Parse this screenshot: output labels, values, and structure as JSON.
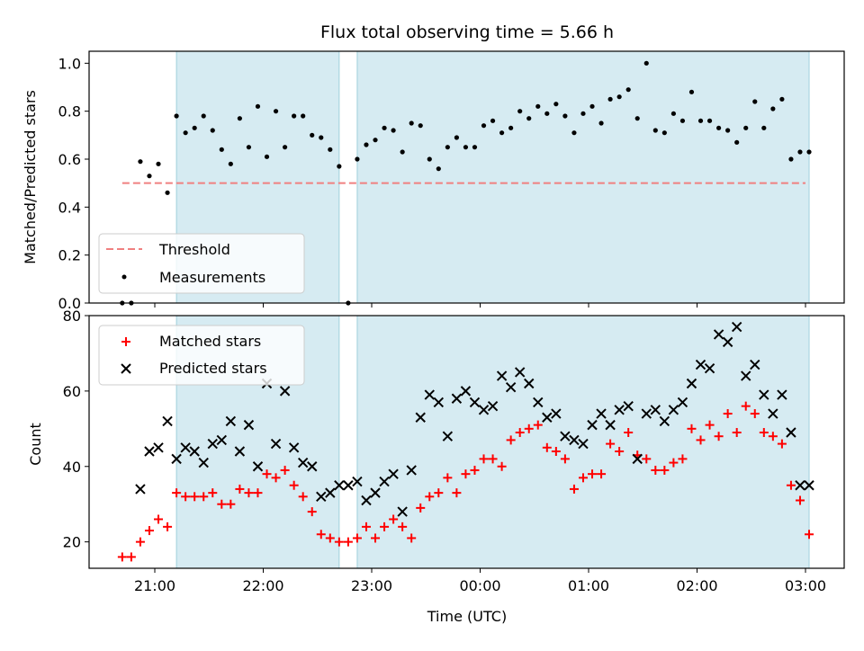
{
  "title": "Flux total observing time = 5.66 h",
  "chart_data": [
    {
      "type": "scatter",
      "panel": "top",
      "ylabel": "Matched/Predicted stars",
      "ylim": [
        0,
        1.05
      ],
      "yticks": [
        0.0,
        0.2,
        0.4,
        0.6,
        0.8,
        1.0
      ],
      "ytick_labels": [
        "0.0",
        "0.2",
        "0.4",
        "0.6",
        "0.8",
        "1.0"
      ],
      "legend_position": "lower-left",
      "grid": false,
      "threshold": {
        "name": "Threshold",
        "value": 0.5,
        "x_start": "20:42",
        "x_end": "03:00",
        "color": "#f08080"
      },
      "series": [
        {
          "name": "Measurements",
          "marker": "dot",
          "color": "#000000",
          "x": [
            "20:42",
            "20:47",
            "20:52",
            "20:57",
            "21:02",
            "21:07",
            "21:12",
            "21:17",
            "21:22",
            "21:27",
            "21:32",
            "21:37",
            "21:42",
            "21:47",
            "21:52",
            "21:57",
            "22:02",
            "22:07",
            "22:12",
            "22:17",
            "22:22",
            "22:27",
            "22:32",
            "22:37",
            "22:42",
            "22:47",
            "22:52",
            "22:57",
            "23:02",
            "23:07",
            "23:12",
            "23:17",
            "23:22",
            "23:27",
            "23:32",
            "23:37",
            "23:42",
            "23:47",
            "23:52",
            "23:57",
            "00:02",
            "00:07",
            "00:12",
            "00:17",
            "00:22",
            "00:27",
            "00:32",
            "00:37",
            "00:42",
            "00:47",
            "00:52",
            "00:57",
            "01:02",
            "01:07",
            "01:12",
            "01:17",
            "01:22",
            "01:27",
            "01:32",
            "01:37",
            "01:42",
            "01:47",
            "01:52",
            "01:57",
            "02:02",
            "02:07",
            "02:12",
            "02:17",
            "02:22",
            "02:27",
            "02:32",
            "02:37",
            "02:42",
            "02:47",
            "02:52",
            "02:57",
            "03:02"
          ],
          "y": [
            0.0,
            0.0,
            0.59,
            0.53,
            0.58,
            0.46,
            0.78,
            0.71,
            0.73,
            0.78,
            0.72,
            0.64,
            0.58,
            0.77,
            0.65,
            0.82,
            0.61,
            0.8,
            0.65,
            0.78,
            0.78,
            0.7,
            0.69,
            0.64,
            0.57,
            0.0,
            0.6,
            0.66,
            0.68,
            0.73,
            0.72,
            0.63,
            0.75,
            0.74,
            0.6,
            0.56,
            0.65,
            0.69,
            0.65,
            0.65,
            0.74,
            0.76,
            0.71,
            0.73,
            0.8,
            0.77,
            0.82,
            0.79,
            0.83,
            0.78,
            0.71,
            0.79,
            0.82,
            0.75,
            0.85,
            0.86,
            0.89,
            0.77,
            1.0,
            0.72,
            0.71,
            0.79,
            0.76,
            0.88,
            0.76,
            0.76,
            0.73,
            0.72,
            0.67,
            0.73,
            0.84,
            0.73,
            0.81,
            0.85,
            0.6,
            0.63,
            0.63
          ]
        }
      ]
    },
    {
      "type": "scatter",
      "panel": "bottom",
      "xlabel": "Time (UTC)",
      "ylabel": "Count",
      "ylim": [
        13,
        80
      ],
      "yticks": [
        20,
        40,
        60,
        80
      ],
      "ytick_labels": [
        "20",
        "40",
        "60",
        "80"
      ],
      "xticks": [
        "21:00",
        "22:00",
        "23:00",
        "00:00",
        "01:00",
        "02:00",
        "03:00"
      ],
      "legend_position": "upper-left",
      "grid": false,
      "series": [
        {
          "name": "Matched stars",
          "marker": "plus",
          "color": "#ff0000",
          "x": [
            "20:42",
            "20:47",
            "20:52",
            "20:57",
            "21:02",
            "21:07",
            "21:12",
            "21:17",
            "21:22",
            "21:27",
            "21:32",
            "21:37",
            "21:42",
            "21:47",
            "21:52",
            "21:57",
            "22:02",
            "22:07",
            "22:12",
            "22:17",
            "22:22",
            "22:27",
            "22:32",
            "22:37",
            "22:42",
            "22:47",
            "22:52",
            "22:57",
            "23:02",
            "23:07",
            "23:12",
            "23:17",
            "23:22",
            "23:27",
            "23:32",
            "23:37",
            "23:42",
            "23:47",
            "23:52",
            "23:57",
            "00:02",
            "00:07",
            "00:12",
            "00:17",
            "00:22",
            "00:27",
            "00:32",
            "00:37",
            "00:42",
            "00:47",
            "00:52",
            "00:57",
            "01:02",
            "01:07",
            "01:12",
            "01:17",
            "01:22",
            "01:27",
            "01:32",
            "01:37",
            "01:42",
            "01:47",
            "01:52",
            "01:57",
            "02:02",
            "02:07",
            "02:12",
            "02:17",
            "02:22",
            "02:27",
            "02:32",
            "02:37",
            "02:42",
            "02:47",
            "02:52",
            "02:57",
            "03:02"
          ],
          "y": [
            16,
            16,
            20,
            23,
            26,
            24,
            33,
            32,
            32,
            32,
            33,
            30,
            30,
            34,
            33,
            33,
            38,
            37,
            39,
            35,
            32,
            28,
            22,
            21,
            20,
            20,
            21,
            24,
            21,
            24,
            26,
            24,
            21,
            29,
            32,
            33,
            37,
            33,
            38,
            39,
            42,
            42,
            40,
            47,
            49,
            50,
            51,
            45,
            44,
            42,
            34,
            37,
            38,
            38,
            46,
            44,
            49,
            43,
            42,
            39,
            39,
            41,
            42,
            50,
            47,
            51,
            48,
            54,
            49,
            56,
            54,
            49,
            48,
            46,
            35,
            31,
            22
          ]
        },
        {
          "name": "Predicted stars",
          "marker": "x",
          "color": "#000000",
          "x": [
            "20:52",
            "20:57",
            "21:02",
            "21:07",
            "21:12",
            "21:17",
            "21:22",
            "21:27",
            "21:32",
            "21:37",
            "21:42",
            "21:47",
            "21:52",
            "21:57",
            "22:02",
            "22:07",
            "22:12",
            "22:17",
            "22:22",
            "22:27",
            "22:32",
            "22:37",
            "22:42",
            "22:47",
            "22:52",
            "22:57",
            "23:02",
            "23:07",
            "23:12",
            "23:17",
            "23:22",
            "23:27",
            "23:32",
            "23:37",
            "23:42",
            "23:47",
            "23:52",
            "23:57",
            "00:02",
            "00:07",
            "00:12",
            "00:17",
            "00:22",
            "00:27",
            "00:32",
            "00:37",
            "00:42",
            "00:47",
            "00:52",
            "00:57",
            "01:02",
            "01:07",
            "01:12",
            "01:17",
            "01:22",
            "01:27",
            "01:32",
            "01:37",
            "01:42",
            "01:47",
            "01:52",
            "01:57",
            "02:02",
            "02:07",
            "02:12",
            "02:17",
            "02:22",
            "02:27",
            "02:32",
            "02:37",
            "02:42",
            "02:47",
            "02:52",
            "02:57",
            "03:02"
          ],
          "y": [
            34,
            44,
            45,
            52,
            42,
            45,
            44,
            41,
            46,
            47,
            52,
            44,
            51,
            40,
            62,
            46,
            60,
            45,
            41,
            40,
            32,
            33,
            35,
            35,
            36,
            31,
            33,
            36,
            38,
            28,
            39,
            53,
            59,
            57,
            48,
            58,
            60,
            57,
            55,
            56,
            64,
            61,
            65,
            62,
            57,
            53,
            54,
            48,
            47,
            46,
            51,
            54,
            51,
            55,
            56,
            42,
            54,
            55,
            52,
            55,
            57,
            62,
            67,
            66,
            75,
            73,
            77,
            64,
            67,
            59,
            54,
            59,
            49,
            35,
            35
          ]
        }
      ]
    }
  ],
  "shaded_intervals": [
    {
      "start": "21:12",
      "end": "22:42"
    },
    {
      "start": "22:52",
      "end": "03:02"
    }
  ]
}
